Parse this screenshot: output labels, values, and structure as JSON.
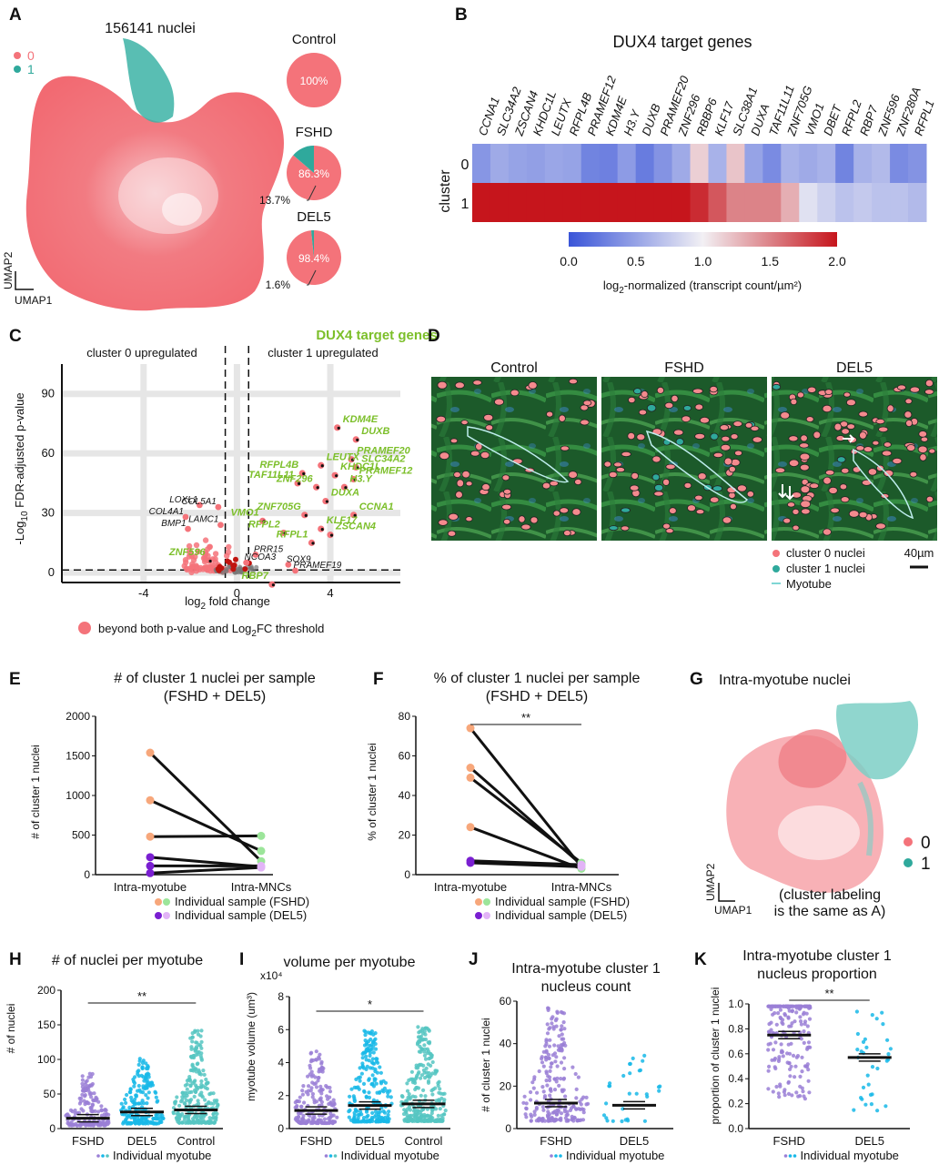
{
  "panels": {
    "A": "A",
    "B": "B",
    "C": "C",
    "D": "D",
    "E": "E",
    "F": "F",
    "G": "G",
    "H": "H",
    "I": "I",
    "J": "J",
    "K": "K"
  },
  "colors": {
    "cluster0": "#f4737a",
    "cluster1": "#2fa99c",
    "heat_low": "#3a55d8",
    "heat_mid": "#f2f0f4",
    "heat_high": "#c6151c",
    "dux4": "#7cbf2a",
    "fshd_hi": "#f7a77b",
    "fshd_lo": "#9ce59a",
    "del5_hi": "#7a1fd1",
    "del5_lo": "#e2b4f7",
    "lavender": "#9a7fd6",
    "cyan": "#18b8e8",
    "teal": "#56c5c2"
  },
  "chart_data": [
    {
      "panel": "A",
      "type": "scatter",
      "title": "156141 nuclei",
      "xlabel": "UMAP1",
      "ylabel": "UMAP2",
      "legend": [
        "0",
        "1"
      ],
      "pies": [
        {
          "label": "Control",
          "slices": [
            {
              "name": "0",
              "value": 100,
              "text": "100%"
            }
          ],
          "labels": []
        },
        {
          "label": "FSHD",
          "slices": [
            {
              "name": "0",
              "value": 86.3,
              "text": "86.3%"
            },
            {
              "name": "1",
              "value": 13.7,
              "text": "13.7%"
            }
          ]
        },
        {
          "label": "DEL5",
          "slices": [
            {
              "name": "0",
              "value": 98.4,
              "text": "98.4%"
            },
            {
              "name": "1",
              "value": 1.6,
              "text": "1.6%"
            }
          ]
        }
      ]
    },
    {
      "panel": "B",
      "type": "heatmap",
      "title": "DUX4 target genes",
      "ylabel": "cluster",
      "rows": [
        "0",
        "1"
      ],
      "genes": [
        "CCNA1",
        "SLC34A2",
        "ZSCAN4",
        "KHDC1L",
        "LEUTX",
        "RFPL4B",
        "PRAMEF12",
        "KDM4E",
        "H3.Y",
        "DUXB",
        "PRAMEF20",
        "ZNF296",
        "RBBP6",
        "KLF17",
        "SLC38A1",
        "DUXA",
        "TAF11L11",
        "ZNF705G",
        "VMO1",
        "DBET",
        "RFPL2",
        "RBP7",
        "ZNF596",
        "ZNF280A",
        "RFPL1"
      ],
      "values": [
        [
          0.42,
          0.55,
          0.5,
          0.48,
          0.52,
          0.5,
          0.3,
          0.28,
          0.45,
          0.25,
          0.4,
          0.55,
          1.15,
          0.6,
          1.2,
          0.5,
          0.35,
          0.6,
          0.55,
          0.6,
          0.3,
          0.6,
          0.65,
          0.35,
          0.4
        ],
        [
          2.0,
          2.0,
          2.0,
          2.0,
          2.0,
          2.0,
          2.0,
          2.0,
          2.0,
          2.0,
          2.0,
          2.0,
          1.9,
          1.7,
          1.5,
          1.5,
          1.5,
          1.3,
          0.9,
          0.8,
          0.7,
          0.75,
          0.7,
          0.7,
          0.65
        ]
      ],
      "colorbar": {
        "ticks": [
          "0.0",
          "0.5",
          "1.0",
          "1.5",
          "2.0"
        ],
        "range": [
          0,
          2
        ],
        "label_pre": "log",
        "label_sub": "2",
        "label_post": "-normalized (transcript count/µm²)"
      }
    },
    {
      "panel": "C",
      "type": "scatter",
      "xlabel_pre": "log",
      "xlabel_sub": "2",
      "xlabel_post": " fold change",
      "ylabel_pre": "-Log",
      "ylabel_sub": "10",
      "ylabel_post": " FDR-adjusted p-value",
      "xlim": [
        -7.5,
        7
      ],
      "ylim": [
        -5,
        105
      ],
      "xticks": [
        "-4",
        "0",
        "4"
      ],
      "yticks": [
        "0",
        "30",
        "60",
        "90"
      ],
      "annot_left": "cluster 0 upregulated",
      "annot_right": "cluster 1 upregulated",
      "annot_genes": "DUX4 target genes",
      "legend": "beyond both p-value and Log",
      "legend_sub": "2",
      "legend_post": "FC threshold",
      "dux4_points": [
        {
          "label": "KDM4E",
          "x": 4.3,
          "y": 73
        },
        {
          "label": "DUXB",
          "x": 5.1,
          "y": 67
        },
        {
          "label": "PRAMEF20",
          "x": 4.9,
          "y": 57
        },
        {
          "label": "LEUTX",
          "x": 3.6,
          "y": 54
        },
        {
          "label": "SLC34A2",
          "x": 5.1,
          "y": 53
        },
        {
          "label": "RFPL4B",
          "x": 2.8,
          "y": 50
        },
        {
          "label": "KHDC1L",
          "x": 4.2,
          "y": 49
        },
        {
          "label": "PRAMEF12",
          "x": 5.0,
          "y": 47
        },
        {
          "label": "TAF11L11",
          "x": 2.6,
          "y": 45
        },
        {
          "label": "ZNF296",
          "x": 3.4,
          "y": 43
        },
        {
          "label": "H3.Y",
          "x": 4.6,
          "y": 43
        },
        {
          "label": "DUXA",
          "x": 3.8,
          "y": 36
        },
        {
          "label": "ZNF705G",
          "x": 2.9,
          "y": 29
        },
        {
          "label": "CCNA1",
          "x": 5.0,
          "y": 29
        },
        {
          "label": "VMO1",
          "x": 1.1,
          "y": 26
        },
        {
          "label": "KLF17",
          "x": 3.6,
          "y": 22
        },
        {
          "label": "RFPL2",
          "x": 2.0,
          "y": 20
        },
        {
          "label": "ZSCAN4",
          "x": 4.0,
          "y": 19
        },
        {
          "label": "RFPL1",
          "x": 3.2,
          "y": 15
        },
        {
          "label": "ZNF596",
          "x": -1.2,
          "y": 6
        },
        {
          "label": "RBP7",
          "x": 1.5,
          "y": -6
        }
      ],
      "black_points": [
        {
          "label": "LOXL1",
          "x": -1.6,
          "y": 34
        },
        {
          "label": "COL5A1",
          "x": -0.8,
          "y": 33
        },
        {
          "label": "COL4A1",
          "x": -2.2,
          "y": 28
        },
        {
          "label": "BMP1",
          "x": -2.1,
          "y": 22
        },
        {
          "label": "LAMC1",
          "x": -0.7,
          "y": 24
        },
        {
          "label": "PRR15",
          "x": 0.8,
          "y": 9
        },
        {
          "label": "NCOA3",
          "x": 0.4,
          "y": 5
        },
        {
          "label": "SOX9",
          "x": 2.2,
          "y": 4
        },
        {
          "label": "PRAMEF19",
          "x": 2.5,
          "y": 1
        }
      ]
    },
    {
      "panel": "D",
      "type": "table",
      "images": [
        "Control",
        "FSHD",
        "DEL5"
      ],
      "legend": [
        "cluster 0 nuclei",
        "cluster 1 nuclei",
        "Myotube"
      ],
      "scale": "40µm"
    },
    {
      "panel": "E",
      "type": "line",
      "title": "# of cluster 1 nuclei per sample",
      "subtitle": "(FSHD + DEL5)",
      "ylabel": "# of cluster 1 nuclei",
      "categories": [
        "Intra-myotube",
        "Intra-MNCs"
      ],
      "ylim": [
        0,
        2000
      ],
      "yticks": [
        "0",
        "500",
        "1000",
        "1500",
        "2000"
      ],
      "series": [
        {
          "group": "FSHD",
          "values": [
            1540,
            170
          ]
        },
        {
          "group": "FSHD",
          "values": [
            940,
            300
          ]
        },
        {
          "group": "FSHD",
          "values": [
            480,
            490
          ]
        },
        {
          "group": "DEL5",
          "values": [
            220,
            100
          ]
        },
        {
          "group": "DEL5",
          "values": [
            110,
            110
          ]
        },
        {
          "group": "DEL5",
          "values": [
            20,
            90
          ]
        }
      ],
      "legend": [
        "Individual sample (FSHD)",
        "Individual sample (DEL5)"
      ]
    },
    {
      "panel": "F",
      "type": "line",
      "title": "% of cluster 1 nuclei per sample",
      "subtitle": "(FSHD + DEL5)",
      "ylabel": "% of cluster 1 nuclei",
      "categories": [
        "Intra-myotube",
        "Intra-MNCs"
      ],
      "ylim": [
        0,
        80
      ],
      "yticks": [
        "0",
        "20",
        "40",
        "60",
        "80"
      ],
      "significance": "**",
      "series": [
        {
          "group": "FSHD",
          "values": [
            74,
            4
          ]
        },
        {
          "group": "FSHD",
          "values": [
            54,
            5
          ]
        },
        {
          "group": "FSHD",
          "values": [
            49,
            6
          ]
        },
        {
          "group": "FSHD",
          "values": [
            24,
            3
          ]
        },
        {
          "group": "DEL5",
          "values": [
            7,
            5
          ]
        },
        {
          "group": "DEL5",
          "values": [
            6,
            4
          ]
        }
      ],
      "legend": [
        "Individual sample (FSHD)",
        "Individual sample (DEL5)"
      ]
    },
    {
      "panel": "G",
      "type": "scatter",
      "title": "Intra-myotube nuclei",
      "xlabel": "UMAP1",
      "ylabel": "UMAP2",
      "legend": [
        "0",
        "1"
      ],
      "note": [
        "(cluster labeling",
        "is the same as A)"
      ]
    },
    {
      "panel": "H",
      "type": "scatter",
      "title": "# of nuclei per myotube",
      "ylabel": "# of nuclei",
      "categories": [
        "FSHD",
        "DEL5",
        "Control"
      ],
      "means": [
        15,
        24,
        27
      ],
      "ylim": [
        0,
        200
      ],
      "yticks": [
        "0",
        "50",
        "100",
        "150",
        "200"
      ],
      "significance": "**",
      "legend": "Individual myotube"
    },
    {
      "panel": "I",
      "type": "scatter",
      "title": "volume per myotube",
      "ylabel": "myotube volume (um³)",
      "exponent": "x10⁴",
      "categories": [
        "FSHD",
        "DEL5",
        "Control"
      ],
      "means": [
        1.1,
        1.4,
        1.5
      ],
      "ylim": [
        0,
        8
      ],
      "yticks": [
        "0",
        "2",
        "4",
        "6",
        "8"
      ],
      "significance": "*",
      "legend": "Individual myotube"
    },
    {
      "panel": "J",
      "type": "scatter",
      "title": "Intra-myotube cluster 1",
      "subtitle": "nucleus count",
      "ylabel": "# of cluster 1 nuclei",
      "categories": [
        "FSHD",
        "DEL5"
      ],
      "means": [
        12,
        11
      ],
      "ylim": [
        0,
        60
      ],
      "yticks": [
        "0",
        "20",
        "40",
        "60"
      ],
      "legend": "Individual myotube"
    },
    {
      "panel": "K",
      "type": "scatter",
      "title": "Intra-myotube cluster 1",
      "subtitle": "nucleus proportion",
      "ylabel": "proportion of cluster 1 nuclei",
      "categories": [
        "FSHD",
        "DEL5"
      ],
      "means": [
        0.75,
        0.57
      ],
      "ylim": [
        0,
        1
      ],
      "yticks": [
        "0.0",
        "0.2",
        "0.4",
        "0.6",
        "0.8",
        "1.0"
      ],
      "significance": "**",
      "legend": "Individual myotube"
    }
  ]
}
